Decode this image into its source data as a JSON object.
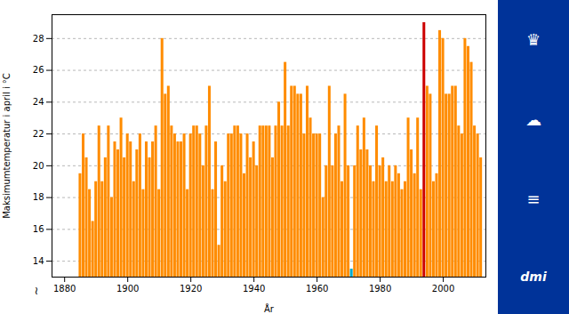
{
  "chart_data": {
    "type": "bar",
    "xlabel": "År",
    "ylabel": "Maksimumtemperatur i april i °C",
    "annotations": [
      "~",
      "♛",
      "☁",
      "≡",
      "dmi"
    ],
    "x": [
      1885,
      1886,
      1887,
      1888,
      1889,
      1890,
      1891,
      1892,
      1893,
      1894,
      1895,
      1896,
      1897,
      1898,
      1899,
      1900,
      1901,
      1902,
      1903,
      1904,
      1905,
      1906,
      1907,
      1908,
      1909,
      1910,
      1911,
      1912,
      1913,
      1914,
      1915,
      1916,
      1917,
      1918,
      1919,
      1920,
      1921,
      1922,
      1923,
      1924,
      1925,
      1926,
      1927,
      1928,
      1929,
      1930,
      1931,
      1932,
      1933,
      1934,
      1935,
      1936,
      1937,
      1938,
      1939,
      1940,
      1941,
      1942,
      1943,
      1944,
      1945,
      1946,
      1947,
      1948,
      1949,
      1950,
      1951,
      1952,
      1953,
      1954,
      1955,
      1956,
      1957,
      1958,
      1959,
      1960,
      1961,
      1962,
      1963,
      1964,
      1965,
      1966,
      1967,
      1968,
      1969,
      1970,
      1971,
      1972,
      1973,
      1974,
      1975,
      1976,
      1977,
      1978,
      1979,
      1980,
      1981,
      1982,
      1983,
      1984,
      1985,
      1986,
      1987,
      1988,
      1989,
      1990,
      1991,
      1992,
      1993,
      1994,
      1995,
      1996,
      1997,
      1998,
      1999,
      2000,
      2001,
      2002,
      2003,
      2004,
      2005,
      2006,
      2007,
      2008,
      2009,
      2010,
      2011,
      2012
    ],
    "values": [
      19.5,
      22.0,
      20.5,
      18.5,
      16.5,
      19.0,
      22.5,
      19.0,
      20.5,
      22.5,
      18.0,
      21.5,
      21.0,
      23.0,
      20.5,
      22.0,
      21.5,
      19.0,
      21.0,
      22.0,
      18.5,
      21.5,
      20.5,
      21.5,
      22.5,
      18.5,
      28.0,
      24.5,
      25.0,
      22.5,
      22.0,
      21.5,
      21.5,
      22.0,
      18.5,
      22.0,
      22.5,
      22.5,
      22.0,
      20.0,
      22.5,
      25.0,
      18.5,
      21.5,
      15.0,
      20.0,
      19.0,
      22.0,
      22.0,
      22.5,
      22.5,
      22.0,
      19.5,
      22.0,
      20.5,
      21.5,
      20.0,
      22.5,
      22.5,
      22.5,
      22.5,
      20.5,
      22.5,
      24.0,
      22.5,
      26.5,
      22.5,
      25.0,
      25.0,
      24.5,
      24.5,
      22.0,
      25.0,
      23.0,
      22.0,
      22.0,
      22.0,
      18.0,
      20.0,
      25.0,
      20.0,
      22.0,
      22.5,
      19.0,
      24.5,
      20.0,
      13.5,
      20.0,
      22.5,
      21.0,
      23.0,
      21.0,
      20.0,
      19.0,
      22.5,
      20.0,
      20.5,
      19.0,
      20.0,
      19.0,
      20.0,
      19.5,
      18.5,
      19.0,
      23.0,
      21.0,
      19.5,
      23.0,
      18.5,
      29.0,
      25.0,
      24.5,
      19.0,
      19.5,
      28.5,
      28.0,
      24.5,
      24.5,
      25.0,
      25.0,
      22.5,
      22.0,
      28.0,
      27.5,
      26.5,
      22.5,
      22.0,
      20.5
    ],
    "colors": [
      "#FF8C00",
      "#FF8C00",
      "#FF8C00",
      "#FF8C00",
      "#FF8C00",
      "#FF8C00",
      "#FF8C00",
      "#FF8C00",
      "#FF8C00",
      "#FF8C00",
      "#FF8C00",
      "#FF8C00",
      "#FF8C00",
      "#FF8C00",
      "#FF8C00",
      "#FF8C00",
      "#FF8C00",
      "#FF8C00",
      "#FF8C00",
      "#FF8C00",
      "#FF8C00",
      "#FF8C00",
      "#FF8C00",
      "#FF8C00",
      "#FF8C00",
      "#FF8C00",
      "#FF8C00",
      "#FF8C00",
      "#FF8C00",
      "#FF8C00",
      "#FF8C00",
      "#FF8C00",
      "#FF8C00",
      "#FF8C00",
      "#FF8C00",
      "#FF8C00",
      "#FF8C00",
      "#FF8C00",
      "#FF8C00",
      "#FF8C00",
      "#FF8C00",
      "#FF8C00",
      "#FF8C00",
      "#FF8C00",
      "#FF8C00",
      "#FF8C00",
      "#FF8C00",
      "#FF8C00",
      "#FF8C00",
      "#FF8C00",
      "#FF8C00",
      "#FF8C00",
      "#FF8C00",
      "#FF8C00",
      "#FF8C00",
      "#FF8C00",
      "#FF8C00",
      "#FF8C00",
      "#FF8C00",
      "#FF8C00",
      "#FF8C00",
      "#FF8C00",
      "#FF8C00",
      "#FF8C00",
      "#FF8C00",
      "#FF8C00",
      "#FF8C00",
      "#FF8C00",
      "#FF8C00",
      "#FF8C00",
      "#FF8C00",
      "#FF8C00",
      "#FF8C00",
      "#FF8C00",
      "#FF8C00",
      "#FF8C00",
      "#FF8C00",
      "#FF8C00",
      "#FF8C00",
      "#FF8C00",
      "#FF8C00",
      "#FF8C00",
      "#FF8C00",
      "#FF8C00",
      "#FF8C00",
      "#FF8C00",
      "#00AACC",
      "#FF8C00",
      "#FF8C00",
      "#FF8C00",
      "#FF8C00",
      "#FF8C00",
      "#FF8C00",
      "#FF8C00",
      "#FF8C00",
      "#FF8C00",
      "#FF8C00",
      "#FF8C00",
      "#FF8C00",
      "#FF8C00",
      "#FF8C00",
      "#FF8C00",
      "#FF8C00",
      "#FF8C00",
      "#FF8C00",
      "#FF8C00",
      "#FF8C00",
      "#FF8C00",
      "#FF8C00",
      "#CC0000",
      "#FF8C00",
      "#FF8C00",
      "#FF8C00",
      "#FF8C00",
      "#FF8C00",
      "#FF8C00",
      "#FF8C00",
      "#FF8C00",
      "#FF8C00",
      "#FF8C00",
      "#FF8C00",
      "#FF8C00",
      "#FF8C00",
      "#FF8C00",
      "#FF8C00",
      "#FF8C00",
      "#FF8C00",
      "#FF8C00"
    ],
    "xlim": [
      1876,
      2013.5
    ],
    "xticks": [
      1880,
      1900,
      1920,
      1940,
      1960,
      1980,
      2000
    ],
    "ylim": [
      13,
      29.5
    ],
    "yticks": [
      14,
      16,
      18,
      20,
      22,
      24,
      26,
      28
    ],
    "grid": true
  }
}
